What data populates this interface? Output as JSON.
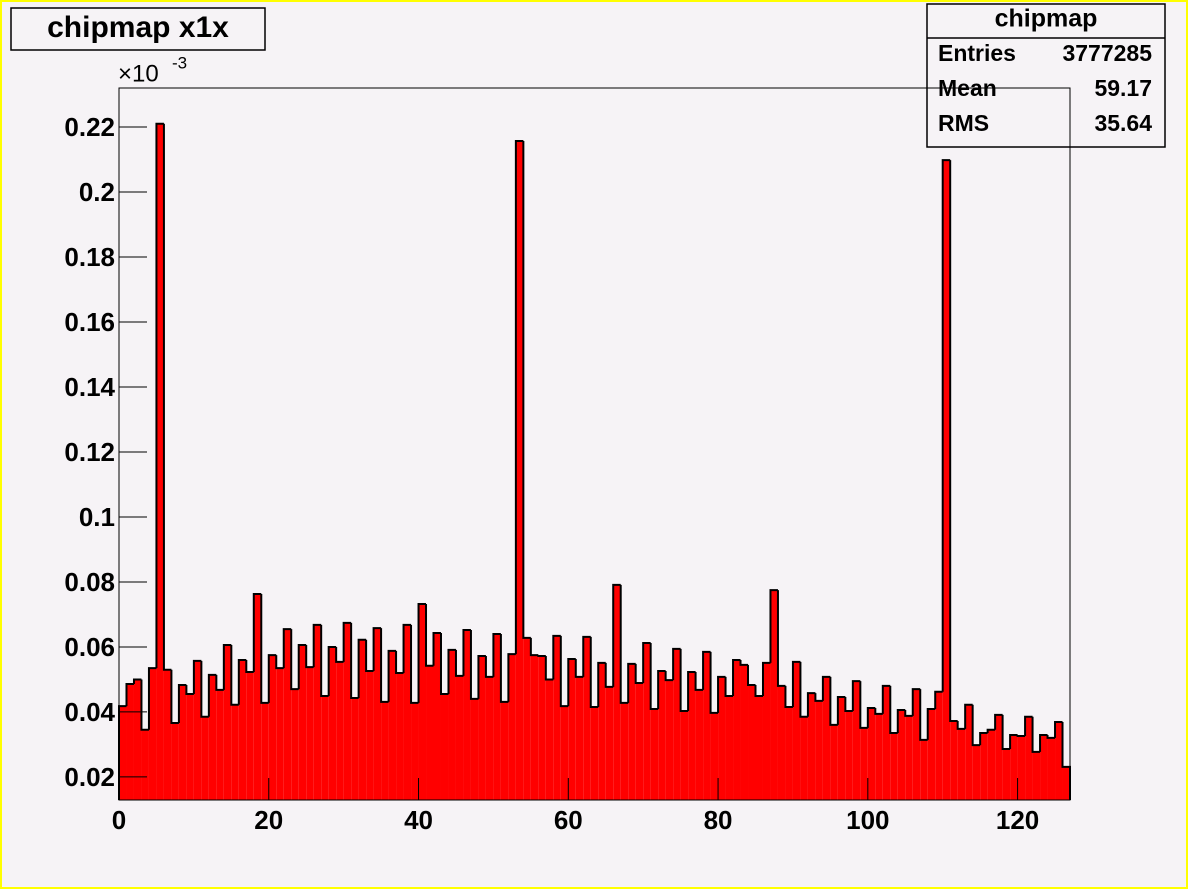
{
  "chart_data": {
    "type": "histogram",
    "title": "chipmap x1x",
    "y_multiplier": {
      "base": "×10",
      "exponent": "-3"
    },
    "stats": {
      "title": "chipmap",
      "rows": [
        {
          "label": "Entries",
          "value": 3777285
        },
        {
          "label": "Mean",
          "value": 59.17
        },
        {
          "label": "RMS",
          "value": 35.64
        }
      ]
    },
    "color": "#ff0000",
    "line_color": "#000000",
    "bins": [
      0,
      1,
      2,
      3,
      4,
      5,
      6,
      7,
      8,
      9,
      10,
      11,
      12,
      13,
      14,
      15,
      16,
      17,
      18,
      19,
      20,
      21,
      22,
      23,
      24,
      25,
      26,
      27,
      28,
      29,
      30,
      31,
      32,
      33,
      34,
      35,
      36,
      37,
      38,
      39,
      40,
      41,
      42,
      43,
      44,
      45,
      46,
      47,
      48,
      49,
      50,
      51,
      52,
      53,
      54,
      55,
      56,
      57,
      58,
      59,
      60,
      61,
      62,
      63,
      64,
      65,
      66,
      67,
      68,
      69,
      70,
      71,
      72,
      73,
      74,
      75,
      76,
      77,
      78,
      79,
      80,
      81,
      82,
      83,
      84,
      85,
      86,
      87,
      88,
      89,
      90,
      91,
      92,
      93,
      94,
      95,
      96,
      97,
      98,
      99,
      100,
      101,
      102,
      103,
      104,
      105,
      106,
      107,
      108,
      109,
      110,
      111,
      112,
      113,
      114,
      115,
      116,
      117,
      118,
      119,
      120,
      121,
      122,
      123,
      124,
      125,
      126,
      127
    ],
    "values": [
      0.0418,
      0.0486,
      0.05,
      0.0345,
      0.0535,
      0.221,
      0.053,
      0.0366,
      0.0483,
      0.0455,
      0.0557,
      0.0385,
      0.0514,
      0.0468,
      0.0606,
      0.0422,
      0.056,
      0.0523,
      0.0763,
      0.0428,
      0.0575,
      0.0535,
      0.0655,
      0.047,
      0.0606,
      0.0538,
      0.0668,
      0.0449,
      0.06,
      0.0554,
      0.0674,
      0.0443,
      0.0622,
      0.0526,
      0.0658,
      0.0431,
      0.0588,
      0.052,
      0.0668,
      0.0428,
      0.0732,
      0.0542,
      0.0643,
      0.0455,
      0.0591,
      0.0511,
      0.0652,
      0.044,
      0.0572,
      0.0508,
      0.064,
      0.0431,
      0.0578,
      0.2157,
      0.0628,
      0.0575,
      0.0572,
      0.05,
      0.0634,
      0.0418,
      0.0563,
      0.0508,
      0.0631,
      0.0415,
      0.0551,
      0.0477,
      0.0791,
      0.0428,
      0.0548,
      0.0489,
      0.0612,
      0.0409,
      0.0526,
      0.0498,
      0.0594,
      0.0403,
      0.0523,
      0.0468,
      0.0585,
      0.0397,
      0.0508,
      0.0449,
      0.056,
      0.0545,
      0.0483,
      0.0449,
      0.0551,
      0.0775,
      0.048,
      0.0415,
      0.0554,
      0.0385,
      0.0458,
      0.0434,
      0.0508,
      0.036,
      0.0446,
      0.0403,
      0.0495,
      0.0351,
      0.0412,
      0.0394,
      0.048,
      0.0335,
      0.0406,
      0.0388,
      0.047,
      0.0314,
      0.0409,
      0.0462,
      0.2098,
      0.0372,
      0.0348,
      0.0422,
      0.0298,
      0.0335,
      0.0345,
      0.0391,
      0.0286,
      0.0329,
      0.0326,
      0.0385,
      0.0277,
      0.0329,
      0.032,
      0.0369,
      0.0231
    ],
    "xlim": [
      0,
      127
    ],
    "xticks": [
      0,
      20,
      40,
      60,
      80,
      100,
      120
    ],
    "ylim": [
      0.0129,
      0.232
    ],
    "yticks": [
      0.02,
      0.04,
      0.06,
      0.08,
      0.1,
      0.12,
      0.14,
      0.16,
      0.18,
      0.2,
      0.22
    ]
  }
}
